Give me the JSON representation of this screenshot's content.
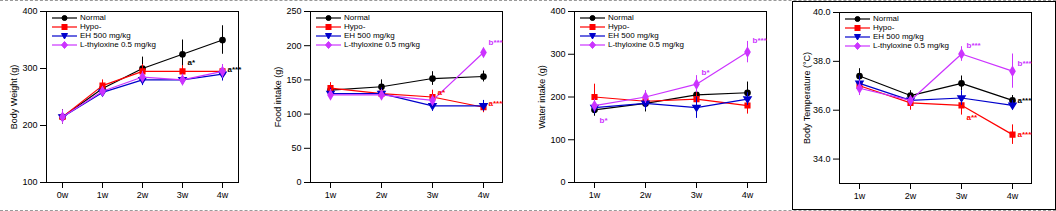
{
  "chart_data": [
    {
      "type": "line",
      "y_label": "Body Weight (g)",
      "categories": [
        "0w",
        "1w",
        "2w",
        "3w",
        "4w"
      ],
      "ylim": [
        100,
        400
      ],
      "yticks": [
        100,
        200,
        300,
        400
      ],
      "series": [
        {
          "name": "Normal",
          "color": "#000000",
          "marker": "circle",
          "values": [
            215,
            265,
            300,
            325,
            350
          ],
          "errors": [
            12,
            10,
            20,
            25,
            25
          ]
        },
        {
          "name": "Hypo-",
          "color": "#ff0000",
          "marker": "square",
          "values": [
            215,
            270,
            295,
            295,
            295
          ],
          "errors": [
            12,
            10,
            12,
            10,
            12
          ]
        },
        {
          "name": "EH 500 mg/kg",
          "color": "#0000cc",
          "marker": "triangle-down",
          "values": [
            215,
            258,
            280,
            280,
            290
          ],
          "errors": [
            12,
            8,
            10,
            10,
            12
          ]
        },
        {
          "name": "L-thyloxine 0.5 mg/kg",
          "color": "#cc33ff",
          "marker": "diamond",
          "values": [
            215,
            260,
            285,
            280,
            295
          ],
          "errors": [
            12,
            8,
            10,
            10,
            12
          ]
        }
      ],
      "annotations": [
        {
          "x": "3w",
          "y": 310,
          "text": "a*",
          "color": "#000000"
        },
        {
          "x": "4w",
          "y": 298,
          "text": "a***",
          "color": "#000000"
        }
      ]
    },
    {
      "type": "line",
      "y_label": "Food intake (g)",
      "categories": [
        "1w",
        "2w",
        "3w",
        "4w"
      ],
      "ylim": [
        0,
        250
      ],
      "yticks": [
        0,
        50,
        100,
        150,
        200,
        250
      ],
      "series": [
        {
          "name": "Normal",
          "color": "#000000",
          "marker": "circle",
          "values": [
            135,
            140,
            152,
            155
          ],
          "errors": [
            8,
            10,
            10,
            8
          ]
        },
        {
          "name": "Hypo-",
          "color": "#ff0000",
          "marker": "square",
          "values": [
            138,
            130,
            125,
            110
          ],
          "errors": [
            8,
            8,
            10,
            8
          ]
        },
        {
          "name": "EH 500 mg/kg",
          "color": "#0000cc",
          "marker": "triangle-down",
          "values": [
            130,
            130,
            112,
            112
          ],
          "errors": [
            8,
            8,
            8,
            8
          ]
        },
        {
          "name": "L-thyloxine 0.5 mg/kg",
          "color": "#cc33ff",
          "marker": "diamond",
          "values": [
            128,
            128,
            120,
            190
          ],
          "errors": [
            8,
            8,
            8,
            6
          ]
        }
      ],
      "annotations": [
        {
          "x": "3w",
          "y": 132,
          "text": "a*",
          "color": "#ff0000"
        },
        {
          "x": "4w",
          "y": 205,
          "text": "b***",
          "color": "#cc33ff"
        },
        {
          "x": "4w",
          "y": 115,
          "text": "a***",
          "color": "#ff0000"
        }
      ]
    },
    {
      "type": "line",
      "y_label": "Water intake (g)",
      "categories": [
        "1w",
        "2w",
        "3w",
        "4w"
      ],
      "ylim": [
        0,
        400
      ],
      "yticks": [
        0,
        100,
        200,
        300,
        400
      ],
      "series": [
        {
          "name": "Normal",
          "color": "#000000",
          "marker": "circle",
          "values": [
            170,
            185,
            205,
            210
          ],
          "errors": [
            15,
            20,
            25,
            25
          ]
        },
        {
          "name": "Hypo-",
          "color": "#ff0000",
          "marker": "square",
          "values": [
            200,
            190,
            195,
            180
          ],
          "errors": [
            30,
            15,
            15,
            20
          ]
        },
        {
          "name": "EH 500 mg/kg",
          "color": "#0000cc",
          "marker": "triangle-down",
          "values": [
            175,
            185,
            175,
            195
          ],
          "errors": [
            15,
            15,
            25,
            15
          ]
        },
        {
          "name": "L-thyloxine 0.5 mg/kg",
          "color": "#cc33ff",
          "marker": "diamond",
          "values": [
            180,
            200,
            230,
            305
          ],
          "errors": [
            15,
            15,
            20,
            25
          ]
        }
      ],
      "annotations": [
        {
          "x": "1w",
          "y": 145,
          "text": "b*",
          "color": "#cc33ff"
        },
        {
          "x": "3w",
          "y": 258,
          "text": "b*",
          "color": "#cc33ff"
        },
        {
          "x": "4w",
          "y": 332,
          "text": "b***",
          "color": "#cc33ff"
        }
      ]
    },
    {
      "type": "line",
      "y_label": "Body Temperature (°C)",
      "categories": [
        "1w",
        "2w",
        "3w",
        "4w"
      ],
      "ylim": [
        33,
        40
      ],
      "yticks": [
        34,
        36,
        38,
        40
      ],
      "series": [
        {
          "name": "Normal",
          "color": "#000000",
          "marker": "circle",
          "values": [
            37.4,
            36.6,
            37.1,
            36.4
          ],
          "errors": [
            0.3,
            0.2,
            0.3,
            0.2
          ]
        },
        {
          "name": "Hypo-",
          "color": "#ff0000",
          "marker": "square",
          "values": [
            37.0,
            36.3,
            36.2,
            35.0
          ],
          "errors": [
            0.3,
            0.3,
            0.4,
            0.4
          ]
        },
        {
          "name": "EH 500 mg/kg",
          "color": "#0000cc",
          "marker": "triangle-down",
          "values": [
            37.1,
            36.4,
            36.5,
            36.2
          ],
          "errors": [
            0.3,
            0.2,
            0.3,
            0.2
          ]
        },
        {
          "name": "L-thyloxine 0.5 mg/kg",
          "color": "#cc33ff",
          "marker": "diamond",
          "values": [
            36.9,
            36.4,
            38.3,
            37.6
          ],
          "errors": [
            0.3,
            0.2,
            0.3,
            0.7
          ]
        }
      ],
      "annotations": [
        {
          "x": "3w",
          "y": 38.65,
          "text": "b***",
          "color": "#cc33ff"
        },
        {
          "x": "3w",
          "y": 35.7,
          "text": "a**",
          "color": "#ff0000"
        },
        {
          "x": "4w",
          "y": 37.9,
          "text": "b***",
          "color": "#cc33ff"
        },
        {
          "x": "4w",
          "y": 36.4,
          "text": "a***",
          "color": "#000000"
        },
        {
          "x": "4w",
          "y": 35.0,
          "text": "a***",
          "color": "#ff0000"
        }
      ]
    }
  ]
}
